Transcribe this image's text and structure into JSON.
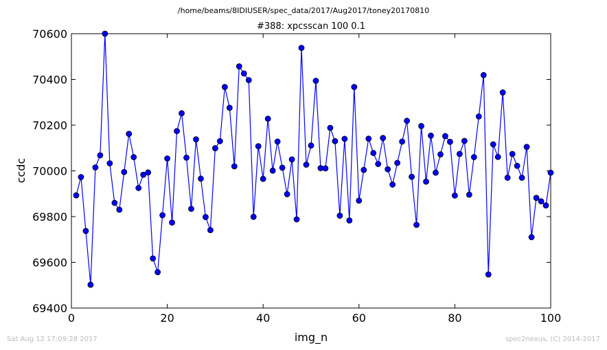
{
  "figure": {
    "suptitle": "/home/beams/8IDIUSER/spec_data/2017/Aug2017/toney20170810",
    "footer_left": "Sat Aug 12 17:09:28 2017",
    "footer_right": "spec2nexus, (C) 2014-2017"
  },
  "chart_data": {
    "type": "line",
    "title": "#388: xpcsscan 100 0.1",
    "xlabel": "img_n",
    "ylabel": "ccdc",
    "xlim": [
      0,
      100
    ],
    "ylim": [
      69400,
      70600
    ],
    "xticks": [
      0,
      20,
      40,
      60,
      80,
      100
    ],
    "yticks": [
      69400,
      69600,
      69800,
      70000,
      70200,
      70400,
      70600
    ],
    "grid": false,
    "line_color": "#0000ff",
    "series": [
      {
        "x": [
          1,
          2,
          3,
          4,
          5,
          6,
          7,
          8,
          9,
          10,
          11,
          12,
          13,
          14,
          15,
          16,
          17,
          18,
          19,
          20,
          21,
          22,
          23,
          24,
          25,
          26,
          27,
          28,
          29,
          30,
          31,
          32,
          33,
          34,
          35,
          36,
          37,
          38,
          39,
          40,
          41,
          42,
          43,
          44,
          45,
          46,
          47,
          48,
          49,
          50,
          51,
          52,
          53,
          54,
          55,
          56,
          57,
          58,
          59,
          60,
          61,
          62,
          63,
          64,
          65,
          66,
          67,
          68,
          69,
          70,
          71,
          72,
          73,
          74,
          75,
          76,
          77,
          78,
          79,
          80,
          81,
          82,
          83,
          84,
          85,
          86,
          87,
          88,
          89,
          90,
          91,
          92,
          93,
          94,
          95,
          96,
          97,
          98,
          99,
          100
        ],
        "y": [
          69893,
          69973,
          69737,
          69502,
          70015,
          70068,
          70600,
          70033,
          69860,
          69830,
          69995,
          70162,
          70060,
          69925,
          69983,
          69993,
          69617,
          69557,
          69806,
          70054,
          69774,
          70174,
          70252,
          70058,
          69834,
          70138,
          69966,
          69798,
          69741,
          70099,
          70130,
          70367,
          70276,
          70020,
          70457,
          70426,
          70397,
          69799,
          70108,
          69965,
          70228,
          70001,
          70128,
          70014,
          69898,
          70050,
          69788,
          70538,
          70027,
          70111,
          70394,
          70012,
          70011,
          70188,
          70130,
          69804,
          70140,
          69783,
          70367,
          69870,
          70004,
          70141,
          70078,
          70030,
          70144,
          70007,
          69940,
          70035,
          70128,
          70219,
          69974,
          69764,
          70196,
          69953,
          70154,
          69992,
          70072,
          70152,
          70127,
          69892,
          70074,
          70131,
          69896,
          70060,
          70238,
          70419,
          69547,
          70116,
          70061,
          70343,
          69970,
          70074,
          70022,
          69970,
          70105,
          69710,
          69882,
          69867,
          69849,
          69992
        ]
      }
    ]
  }
}
